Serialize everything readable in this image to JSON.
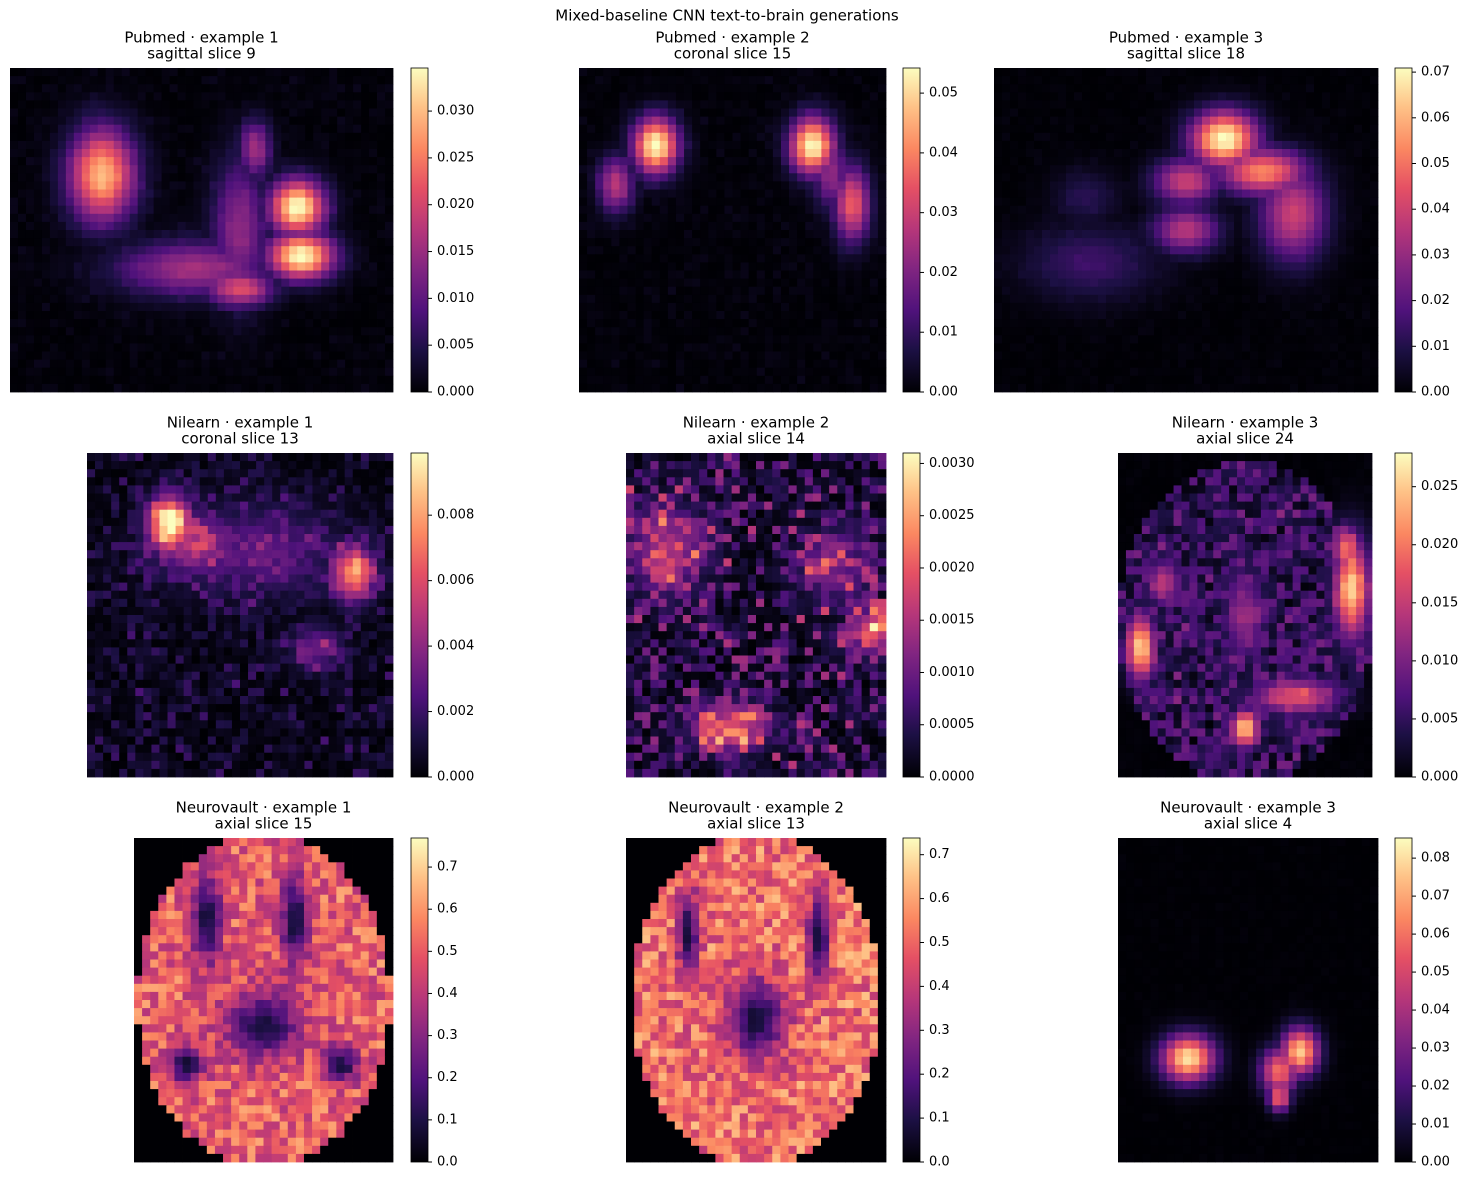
{
  "title": "Mixed-baseline CNN text-to-brain generations",
  "chart_data": [
    {
      "type": "heatmap",
      "title": "Pubmed · example 1",
      "subtitle": "sagittal slice 9",
      "colormap": "magma",
      "clim": [
        0,
        0.0346
      ],
      "cticks": [
        {
          "value": 0,
          "label": "0.000"
        },
        {
          "value": 0.005,
          "label": "0.005"
        },
        {
          "value": 0.01,
          "label": "0.010"
        },
        {
          "value": 0.015,
          "label": "0.015"
        },
        {
          "value": 0.02,
          "label": "0.020"
        },
        {
          "value": 0.025,
          "label": "0.025"
        },
        {
          "value": 0.03,
          "label": "0.030"
        }
      ]
    },
    {
      "type": "heatmap",
      "title": "Pubmed · example 2",
      "subtitle": "coronal slice 15",
      "colormap": "magma",
      "clim": [
        0,
        0.0542
      ],
      "cticks": [
        {
          "value": 0,
          "label": "0.00"
        },
        {
          "value": 0.01,
          "label": "0.01"
        },
        {
          "value": 0.02,
          "label": "0.02"
        },
        {
          "value": 0.03,
          "label": "0.03"
        },
        {
          "value": 0.04,
          "label": "0.04"
        },
        {
          "value": 0.05,
          "label": "0.05"
        }
      ]
    },
    {
      "type": "heatmap",
      "title": "Pubmed · example 3",
      "subtitle": "sagittal slice 18",
      "colormap": "magma",
      "clim": [
        0,
        0.0709
      ],
      "cticks": [
        {
          "value": 0,
          "label": "0.00"
        },
        {
          "value": 0.01,
          "label": "0.01"
        },
        {
          "value": 0.02,
          "label": "0.02"
        },
        {
          "value": 0.03,
          "label": "0.03"
        },
        {
          "value": 0.04,
          "label": "0.04"
        },
        {
          "value": 0.05,
          "label": "0.05"
        },
        {
          "value": 0.06,
          "label": "0.06"
        },
        {
          "value": 0.07,
          "label": "0.07"
        }
      ]
    },
    {
      "type": "heatmap",
      "title": "Nilearn · example 1",
      "subtitle": "coronal slice 13",
      "colormap": "magma",
      "clim": [
        0,
        0.0099
      ],
      "cticks": [
        {
          "value": 0,
          "label": "0.000"
        },
        {
          "value": 0.002,
          "label": "0.002"
        },
        {
          "value": 0.004,
          "label": "0.004"
        },
        {
          "value": 0.006,
          "label": "0.006"
        },
        {
          "value": 0.008,
          "label": "0.008"
        }
      ]
    },
    {
      "type": "heatmap",
      "title": "Nilearn · example 2",
      "subtitle": "axial slice 14",
      "colormap": "magma",
      "clim": [
        0,
        0.0031
      ],
      "cticks": [
        {
          "value": 0,
          "label": "0.0000"
        },
        {
          "value": 0.0005,
          "label": "0.0005"
        },
        {
          "value": 0.001,
          "label": "0.0010"
        },
        {
          "value": 0.0015,
          "label": "0.0015"
        },
        {
          "value": 0.002,
          "label": "0.0020"
        },
        {
          "value": 0.0025,
          "label": "0.0025"
        },
        {
          "value": 0.003,
          "label": "0.0030"
        }
      ]
    },
    {
      "type": "heatmap",
      "title": "Nilearn · example 3",
      "subtitle": "axial slice 24",
      "colormap": "magma",
      "clim": [
        0,
        0.0279
      ],
      "cticks": [
        {
          "value": 0,
          "label": "0.000"
        },
        {
          "value": 0.005,
          "label": "0.005"
        },
        {
          "value": 0.01,
          "label": "0.010"
        },
        {
          "value": 0.015,
          "label": "0.015"
        },
        {
          "value": 0.02,
          "label": "0.020"
        },
        {
          "value": 0.025,
          "label": "0.025"
        }
      ]
    },
    {
      "type": "heatmap",
      "title": "Neurovault · example 1",
      "subtitle": "axial slice 15",
      "colormap": "magma",
      "clim": [
        0,
        0.769
      ],
      "cticks": [
        {
          "value": 0,
          "label": "0.0"
        },
        0.1,
        0.2,
        0.3,
        0.4,
        0.5,
        0.6,
        0.7
      ]
    },
    {
      "type": "heatmap",
      "title": "Neurovault · example 2",
      "subtitle": "axial slice 13",
      "colormap": "magma",
      "clim": [
        0,
        0.738
      ],
      "cticks": [
        {
          "value": 0,
          "label": "0.0"
        },
        0.1,
        0.2,
        0.3,
        0.4,
        0.5,
        0.6,
        0.7
      ]
    },
    {
      "type": "heatmap",
      "title": "Neurovault · example 3",
      "subtitle": "axial slice 4",
      "colormap": "magma",
      "clim": [
        0,
        0.0853
      ],
      "cticks": [
        {
          "value": 0,
          "label": "0.00"
        },
        {
          "value": 0.01,
          "label": "0.01"
        },
        {
          "value": 0.02,
          "label": "0.02"
        },
        {
          "value": 0.03,
          "label": "0.03"
        },
        {
          "value": 0.04,
          "label": "0.04"
        },
        {
          "value": 0.05,
          "label": "0.05"
        },
        {
          "value": 0.06,
          "label": "0.06"
        },
        {
          "value": 0.07,
          "label": "0.07"
        },
        {
          "value": 0.08,
          "label": "0.08"
        }
      ]
    }
  ]
}
